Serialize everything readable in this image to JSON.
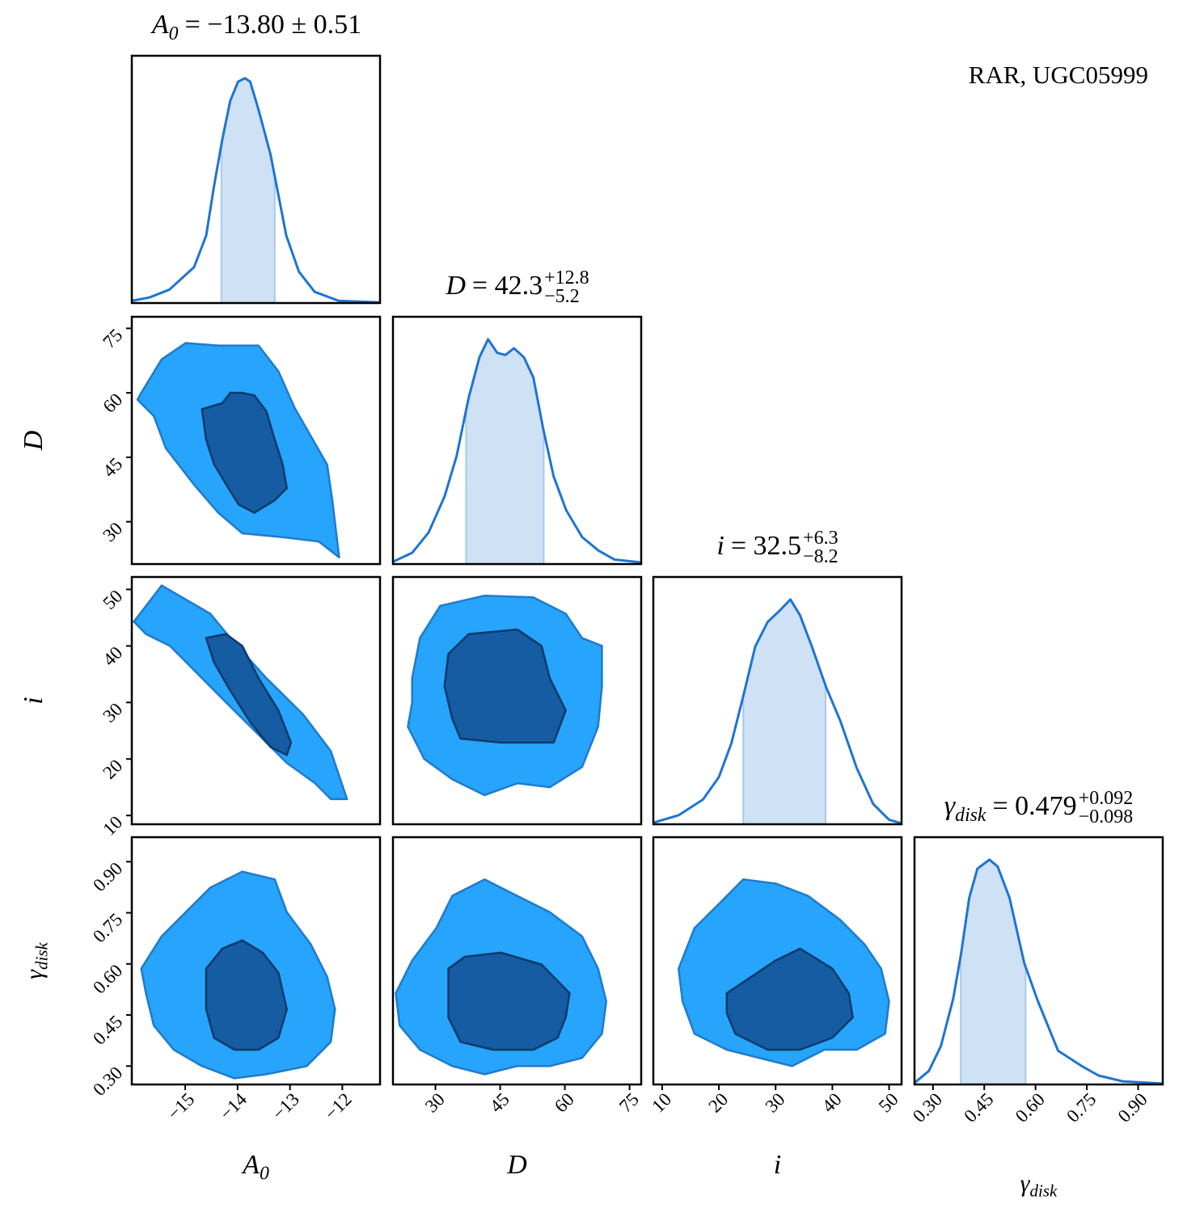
{
  "chart_data": {
    "type": "corner",
    "annotation": "RAR, UGC05999",
    "annotation_color": "#2a7bd4",
    "line_color": "#1f74d2",
    "interval_color": "#cfe1f4",
    "contour_fills": [
      "#27a4fb",
      "#155ca3"
    ],
    "contour_edges": [
      "#1f7bcc",
      "#0d3a6b"
    ],
    "parameters": [
      {
        "symbol": "A",
        "subscript": "0",
        "title_value": "= −13.80 ± 0.51",
        "lim": [
          -16.02,
          -11.28
        ],
        "ticks": [
          {
            "value": -15,
            "label": "−15"
          },
          {
            "value": -14,
            "label": "−14"
          },
          {
            "value": -13,
            "label": "−13"
          },
          {
            "value": -12,
            "label": "−12"
          }
        ]
      },
      {
        "symbol": "D",
        "title_value": "= 42.3",
        "upper": "+12.8",
        "lower": "−5.2",
        "lim": [
          20.15,
          77.7
        ],
        "ticks": [
          30,
          45,
          60,
          75
        ]
      },
      {
        "symbol": "i",
        "title_value": "= 32.5",
        "upper": "+6.3",
        "lower": "−8.2",
        "lim": [
          8.45,
          52.2
        ],
        "ticks": [
          10,
          20,
          30,
          40,
          50
        ]
      },
      {
        "symbol": "γ",
        "subscript": "disk",
        "title_value": "= 0.479",
        "upper": "+0.092",
        "lower": "−0.098",
        "lim": [
          0.246,
          0.972
        ],
        "ticks": [
          {
            "value": 0.3,
            "label": "0.30"
          },
          {
            "value": 0.45,
            "label": "0.45"
          },
          {
            "value": 0.6,
            "label": "0.60"
          },
          {
            "value": 0.75,
            "label": "0.75"
          },
          {
            "value": 0.9,
            "label": "0.90"
          }
        ]
      }
    ],
    "diagonal": [
      {
        "ylim": [
          0,
          1.1
        ],
        "interval": [
          -14.31,
          -13.29
        ],
        "x": [
          -16.02,
          -15.68,
          -15.3,
          -14.83,
          -14.6,
          -14.45,
          -14.29,
          -14.14,
          -13.99,
          -13.86,
          -13.76,
          -13.6,
          -13.37,
          -13.22,
          -13.07,
          -12.83,
          -12.53,
          -12.07,
          -11.3
        ],
        "values": [
          0.01,
          0.025,
          0.06,
          0.16,
          0.3,
          0.52,
          0.73,
          0.9,
          0.985,
          1.0,
          0.985,
          0.86,
          0.66,
          0.48,
          0.3,
          0.14,
          0.05,
          0.01,
          0.003
        ]
      },
      {
        "ylim": [
          0,
          1.1
        ],
        "interval": [
          37.1,
          55.1
        ],
        "x": [
          20.1,
          24.6,
          28.4,
          32.1,
          34.9,
          37.7,
          40.2,
          42.2,
          44.3,
          46.2,
          48.2,
          50.5,
          52.7,
          55.0,
          57.4,
          60.3,
          64.0,
          67.8,
          71.5,
          77.7
        ],
        "values": [
          0.01,
          0.05,
          0.14,
          0.3,
          0.48,
          0.74,
          0.92,
          1.0,
          0.94,
          0.93,
          0.96,
          0.92,
          0.83,
          0.6,
          0.39,
          0.24,
          0.12,
          0.06,
          0.02,
          0.007
        ]
      },
      {
        "ylim": [
          0,
          1.1
        ],
        "interval": [
          24.3,
          38.8
        ],
        "x": [
          8.45,
          12.9,
          17.2,
          20.0,
          22.2,
          24.3,
          26.4,
          28.6,
          30.7,
          32.6,
          34.3,
          36.4,
          38.9,
          41.4,
          44.3,
          47.2,
          50.0,
          52.2
        ],
        "values": [
          0.007,
          0.04,
          0.11,
          0.21,
          0.36,
          0.57,
          0.79,
          0.9,
          0.95,
          1.0,
          0.93,
          0.79,
          0.61,
          0.46,
          0.25,
          0.09,
          0.02,
          0.004
        ]
      },
      {
        "ylim": [
          0,
          1.1
        ],
        "interval": [
          0.381,
          0.571
        ],
        "x": [
          0.246,
          0.288,
          0.323,
          0.359,
          0.382,
          0.406,
          0.43,
          0.465,
          0.489,
          0.524,
          0.567,
          0.607,
          0.666,
          0.737,
          0.784,
          0.855,
          0.972
        ],
        "values": [
          0.007,
          0.06,
          0.17,
          0.38,
          0.58,
          0.83,
          0.96,
          1.0,
          0.97,
          0.83,
          0.54,
          0.37,
          0.15,
          0.08,
          0.04,
          0.014,
          0.004
        ]
      }
    ],
    "pairs": [
      {
        "contours": [
          {
            "x": [
              -15.84,
              -15.45,
              -14.99,
              -14.37,
              -13.6,
              -13.22,
              -12.91,
              -12.6,
              -12.29,
              -12.19,
              -12.06,
              -12.45,
              -13.14,
              -13.91,
              -14.37,
              -14.83,
              -15.37,
              -15.6,
              -15.91
            ],
            "y": [
              60,
              67.8,
              71.6,
              71.0,
              71.0,
              65,
              56.5,
              49.9,
              43.3,
              34.9,
              21.7,
              25.4,
              26.4,
              27.3,
              32.1,
              38.6,
              47.1,
              54.6,
              58.4
            ]
          },
          {
            "x": [
              -14.68,
              -14.29,
              -14.14,
              -13.91,
              -13.68,
              -13.45,
              -13.29,
              -13.14,
              -13.06,
              -13.29,
              -13.68,
              -13.98,
              -14.22,
              -14.45,
              -14.6
            ],
            "y": [
              56.2,
              57.6,
              60,
              60,
              59.4,
              55.7,
              49.1,
              43.4,
              37.8,
              35.0,
              32.1,
              34.0,
              38.7,
              43.4,
              49.1
            ]
          }
        ]
      },
      {
        "contours": [
          {
            "x": [
              -15.98,
              -15.68,
              -15.45,
              -15.06,
              -14.52,
              -14.14,
              -13.45,
              -12.75,
              -12.22,
              -11.91,
              -12.22,
              -12.52,
              -13.06,
              -13.6,
              -14.22,
              -14.83,
              -15.29,
              -15.75
            ],
            "y": [
              44.3,
              47.9,
              50.7,
              48.6,
              45.7,
              41.4,
              34.3,
              27.9,
              21.4,
              12.9,
              12.9,
              15.7,
              19.3,
              24.3,
              30,
              35.7,
              40,
              42.1
            ]
          },
          {
            "x": [
              -14.6,
              -14.22,
              -13.91,
              -13.6,
              -13.22,
              -12.98,
              -13.06,
              -13.37,
              -13.75,
              -14.14,
              -14.45
            ],
            "y": [
              41.4,
              42.1,
              40,
              34.3,
              28.6,
              22.9,
              20.7,
              22.1,
              26.4,
              32.1,
              37.1
            ]
          }
        ]
      },
      {
        "contours": [
          {
            "x": [
              24.6,
              26.4,
              31.1,
              41.4,
              52.7,
              60.2,
              64.0,
              68.6,
              68.6,
              67.7,
              64.0,
              56.5,
              49.0,
              41.4,
              33.9,
              27.4,
              23.6,
              24.6
            ],
            "y": [
              34.3,
              41.4,
              47.1,
              48.9,
              48.6,
              45.7,
              41.4,
              40,
              32.9,
              25.7,
              18.6,
              15,
              15.7,
              13.6,
              16.4,
              20,
              25.7,
              30
            ]
          },
          {
            "x": [
              33.0,
              37.7,
              49.0,
              54.6,
              56.5,
              60.2,
              57.4,
              45.2,
              35.8,
              33.9,
              32.1
            ],
            "y": [
              38.6,
              42.1,
              42.9,
              40,
              34.3,
              28.6,
              22.9,
              22.9,
              23.6,
              27.1,
              32.9
            ]
          }
        ]
      },
      {
        "contours": [
          {
            "x": [
              -15.84,
              -15.45,
              -14.99,
              -14.52,
              -13.91,
              -13.29,
              -13.06,
              -12.6,
              -12.29,
              -12.14,
              -12.22,
              -12.68,
              -13.45,
              -14.06,
              -14.68,
              -15.22,
              -15.6,
              -15.75
            ],
            "y": [
              0.586,
              0.681,
              0.752,
              0.824,
              0.871,
              0.848,
              0.752,
              0.657,
              0.562,
              0.467,
              0.371,
              0.3,
              0.276,
              0.264,
              0.3,
              0.348,
              0.419,
              0.514
            ]
          },
          {
            "x": [
              -14.6,
              -14.29,
              -13.91,
              -13.52,
              -13.22,
              -13.06,
              -13.22,
              -13.6,
              -14.06,
              -14.45,
              -14.6
            ],
            "y": [
              0.586,
              0.645,
              0.669,
              0.633,
              0.574,
              0.467,
              0.383,
              0.348,
              0.348,
              0.383,
              0.467
            ]
          }
        ]
      },
      {
        "contours": [
          {
            "x": [
              20.8,
              24.6,
              30.2,
              33.9,
              41.4,
              48.9,
              56.5,
              64.0,
              67.7,
              69.6,
              68.6,
              64.0,
              56.5,
              48.9,
              41.4,
              33.9,
              26.4,
              21.7
            ],
            "y": [
              0.514,
              0.61,
              0.705,
              0.8,
              0.848,
              0.8,
              0.752,
              0.681,
              0.586,
              0.49,
              0.395,
              0.324,
              0.3,
              0.3,
              0.276,
              0.3,
              0.348,
              0.419
            ]
          },
          {
            "x": [
              33.0,
              36.8,
              45.2,
              54.6,
              61.1,
              60.2,
              58.3,
              52.7,
              43.3,
              35.8,
              33.0
            ],
            "y": [
              0.586,
              0.621,
              0.633,
              0.598,
              0.514,
              0.443,
              0.383,
              0.348,
              0.348,
              0.371,
              0.443
            ]
          }
        ]
      },
      {
        "contours": [
          {
            "x": [
              12.9,
              15.7,
              20,
              24.3,
              30,
              35.7,
              41.4,
              45.7,
              48.6,
              50,
              49.3,
              44.3,
              38.6,
              32.9,
              27.1,
              21.4,
              15.7,
              13.6
            ],
            "y": [
              0.586,
              0.705,
              0.776,
              0.848,
              0.836,
              0.8,
              0.729,
              0.657,
              0.586,
              0.49,
              0.395,
              0.348,
              0.348,
              0.3,
              0.324,
              0.348,
              0.395,
              0.49
            ]
          },
          {
            "x": [
              21.4,
              25.7,
              30,
              34.3,
              40,
              42.9,
              43.6,
              40,
              34.3,
              28.6,
              22.9,
              21.4
            ],
            "y": [
              0.514,
              0.562,
              0.61,
              0.645,
              0.586,
              0.514,
              0.443,
              0.383,
              0.348,
              0.348,
              0.395,
              0.455
            ]
          }
        ]
      }
    ]
  }
}
